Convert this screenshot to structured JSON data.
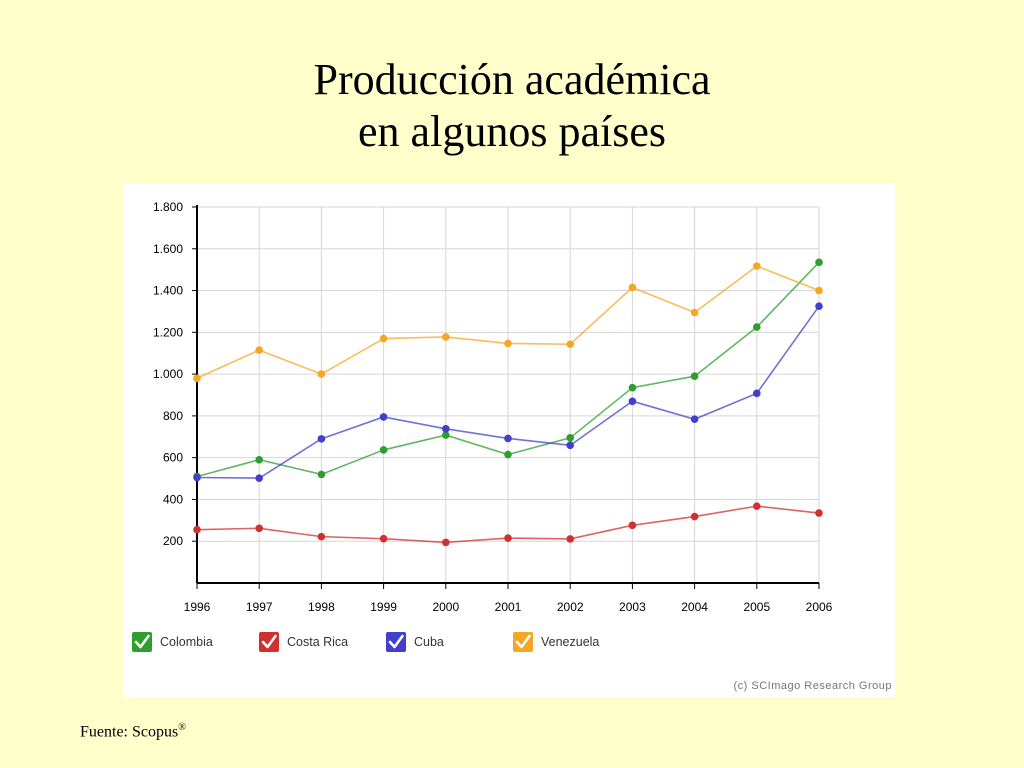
{
  "slide": {
    "title_line1": "Producción académica",
    "title_line2": "en algunos países",
    "source_label": "Fuente: Scopus",
    "source_mark": "®"
  },
  "chart_data": {
    "type": "line",
    "x": [
      "1996",
      "1997",
      "1998",
      "1999",
      "2000",
      "2001",
      "2002",
      "2003",
      "2004",
      "2005",
      "2006"
    ],
    "ylim": [
      0,
      1800
    ],
    "yticks": [
      200,
      400,
      600,
      800,
      1000,
      1200,
      1400,
      1600,
      1800
    ],
    "ytick_labels": [
      "200",
      "400",
      "600",
      "800",
      "1.000",
      "1.200",
      "1.400",
      "1.600",
      "1.800"
    ],
    "grid": true,
    "legend_position": "bottom",
    "credit": "(c) SCImago Research Group",
    "series": [
      {
        "name": "Colombia",
        "color": "#2E9E2E",
        "values": [
          510,
          590,
          520,
          637,
          708,
          615,
          695,
          935,
          990,
          1225,
          1535
        ]
      },
      {
        "name": "Costa Rica",
        "color": "#D13030",
        "values": [
          255,
          262,
          222,
          212,
          194,
          215,
          211,
          276,
          318,
          368,
          335
        ]
      },
      {
        "name": "Cuba",
        "color": "#4040CC",
        "values": [
          505,
          502,
          690,
          795,
          738,
          692,
          659,
          870,
          784,
          908,
          1325
        ]
      },
      {
        "name": "Venezuela",
        "color": "#F5A623",
        "values": [
          980,
          1115,
          1000,
          1170,
          1178,
          1147,
          1143,
          1415,
          1295,
          1517,
          1400
        ]
      }
    ]
  }
}
